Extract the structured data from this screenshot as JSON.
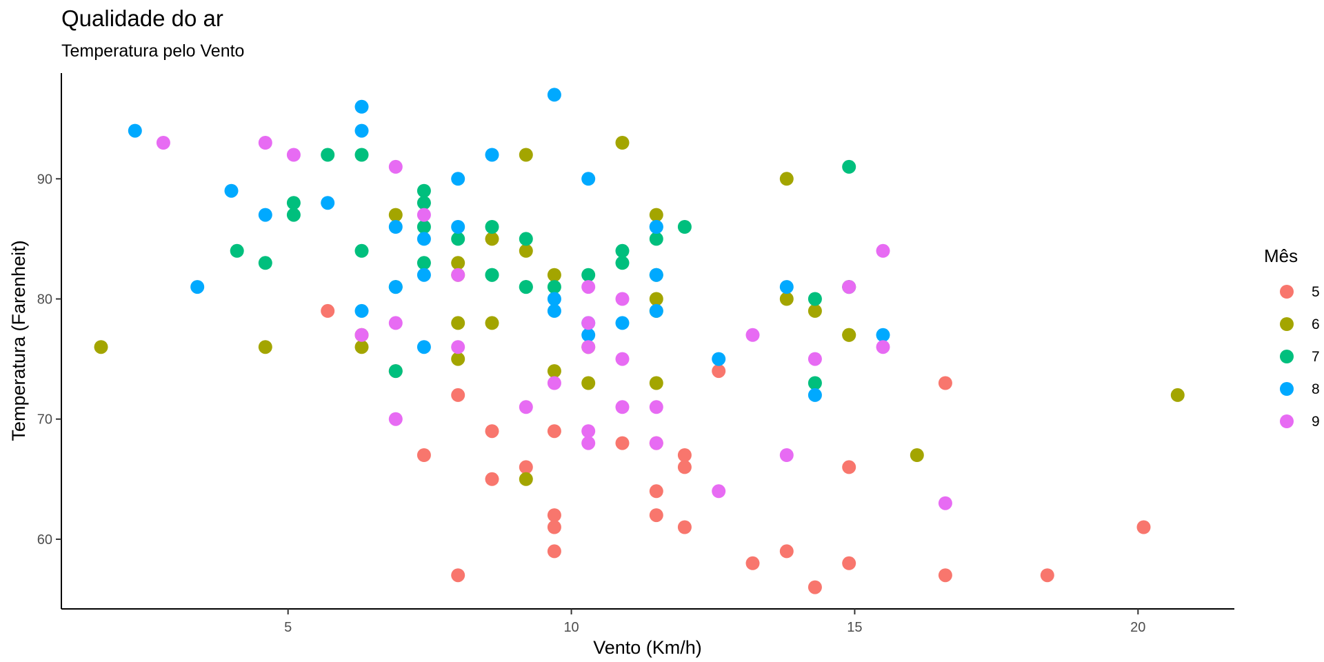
{
  "chart_data": {
    "type": "scatter",
    "title": "Qualidade do ar",
    "subtitle": "Temperatura pelo Vento",
    "xlabel": "Vento (Km/h)",
    "ylabel": "Temperatura (Farenheit)",
    "xlim": [
      1,
      21.7
    ],
    "ylim": [
      54.2,
      98.8
    ],
    "xticks": [
      5,
      10,
      15,
      20
    ],
    "yticks": [
      60,
      70,
      80,
      90
    ],
    "grid": false,
    "legend": {
      "title": "Mês",
      "placement": "right"
    },
    "series": [
      {
        "name": "5",
        "color": "#F8766D",
        "points": [
          [
            7.4,
            67
          ],
          [
            8,
            72
          ],
          [
            12.6,
            74
          ],
          [
            11.5,
            62
          ],
          [
            14.3,
            56
          ],
          [
            14.9,
            66
          ],
          [
            8.6,
            65
          ],
          [
            13.8,
            59
          ],
          [
            20.1,
            61
          ],
          [
            8.6,
            69
          ],
          [
            6.9,
            74
          ],
          [
            9.7,
            69
          ],
          [
            9.2,
            66
          ],
          [
            10.9,
            68
          ],
          [
            13.2,
            58
          ],
          [
            11.5,
            64
          ],
          [
            12,
            66
          ],
          [
            18.4,
            57
          ],
          [
            11.5,
            68
          ],
          [
            9.7,
            62
          ],
          [
            9.7,
            59
          ],
          [
            16.6,
            73
          ],
          [
            9.7,
            61
          ],
          [
            12,
            61
          ],
          [
            16.6,
            57
          ],
          [
            14.9,
            58
          ],
          [
            8,
            57
          ],
          [
            12,
            67
          ],
          [
            14.9,
            81
          ],
          [
            5.7,
            79
          ]
        ]
      },
      {
        "name": "6",
        "color": "#A3A500",
        "points": [
          [
            8.6,
            78
          ],
          [
            9.7,
            74
          ],
          [
            16.1,
            67
          ],
          [
            9.2,
            84
          ],
          [
            8.6,
            85
          ],
          [
            14.3,
            79
          ],
          [
            9.7,
            82
          ],
          [
            6.9,
            87
          ],
          [
            13.8,
            90
          ],
          [
            11.5,
            87
          ],
          [
            10.9,
            93
          ],
          [
            9.2,
            92
          ],
          [
            8,
            82
          ],
          [
            13.8,
            80
          ],
          [
            11.5,
            79
          ],
          [
            14.9,
            77
          ],
          [
            20.7,
            72
          ],
          [
            9.2,
            65
          ],
          [
            11.5,
            73
          ],
          [
            10.3,
            76
          ],
          [
            6.3,
            77
          ],
          [
            1.7,
            76
          ],
          [
            4.6,
            76
          ],
          [
            6.3,
            76
          ],
          [
            8,
            75
          ],
          [
            8,
            78
          ],
          [
            10.3,
            73
          ],
          [
            11.5,
            80
          ],
          [
            14.9,
            77
          ],
          [
            8,
            83
          ]
        ]
      },
      {
        "name": "7",
        "color": "#00BF7D",
        "points": [
          [
            4.1,
            84
          ],
          [
            9.2,
            85
          ],
          [
            9.2,
            81
          ],
          [
            10.9,
            84
          ],
          [
            4.6,
            83
          ],
          [
            10.9,
            83
          ],
          [
            5.1,
            88
          ],
          [
            6.3,
            92
          ],
          [
            5.7,
            92
          ],
          [
            7.4,
            89
          ],
          [
            8.6,
            82
          ],
          [
            14.3,
            73
          ],
          [
            14.9,
            81
          ],
          [
            14.9,
            91
          ],
          [
            14.3,
            80
          ],
          [
            6.9,
            81
          ],
          [
            10.3,
            82
          ],
          [
            6.3,
            84
          ],
          [
            5.1,
            87
          ],
          [
            11.5,
            85
          ],
          [
            6.9,
            74
          ],
          [
            9.7,
            81
          ],
          [
            11.5,
            82
          ],
          [
            8.6,
            86
          ],
          [
            8,
            85
          ],
          [
            8.6,
            82
          ],
          [
            12,
            86
          ],
          [
            7.4,
            88
          ],
          [
            7.4,
            86
          ],
          [
            7.4,
            83
          ],
          [
            9.2,
            81
          ]
        ]
      },
      {
        "name": "8",
        "color": "#00A9FF",
        "points": [
          [
            6.9,
            81
          ],
          [
            13.8,
            81
          ],
          [
            7.4,
            82
          ],
          [
            6.9,
            86
          ],
          [
            7.4,
            85
          ],
          [
            4.6,
            87
          ],
          [
            4,
            89
          ],
          [
            10.3,
            90
          ],
          [
            8,
            90
          ],
          [
            8.6,
            92
          ],
          [
            11.5,
            86
          ],
          [
            11.5,
            86
          ],
          [
            11.5,
            82
          ],
          [
            9.7,
            80
          ],
          [
            11.5,
            79
          ],
          [
            10.3,
            77
          ],
          [
            6.3,
            79
          ],
          [
            7.4,
            76
          ],
          [
            10.9,
            78
          ],
          [
            10.3,
            78
          ],
          [
            15.5,
            77
          ],
          [
            14.3,
            72
          ],
          [
            12.6,
            75
          ],
          [
            9.7,
            79
          ],
          [
            3.4,
            81
          ],
          [
            8,
            86
          ],
          [
            5.7,
            88
          ],
          [
            9.7,
            97
          ],
          [
            2.3,
            94
          ],
          [
            6.3,
            96
          ],
          [
            6.3,
            94
          ]
        ]
      },
      {
        "name": "9",
        "color": "#E76BF3",
        "points": [
          [
            6.9,
            91
          ],
          [
            5.1,
            92
          ],
          [
            2.8,
            93
          ],
          [
            4.6,
            93
          ],
          [
            7.4,
            87
          ],
          [
            15.5,
            84
          ],
          [
            10.9,
            80
          ],
          [
            10.3,
            78
          ],
          [
            10.9,
            75
          ],
          [
            9.7,
            73
          ],
          [
            14.9,
            81
          ],
          [
            15.5,
            76
          ],
          [
            6.3,
            77
          ],
          [
            10.9,
            71
          ],
          [
            11.5,
            71
          ],
          [
            6.9,
            78
          ],
          [
            13.8,
            67
          ],
          [
            10.3,
            76
          ],
          [
            10.3,
            68
          ],
          [
            8,
            82
          ],
          [
            12.6,
            64
          ],
          [
            9.2,
            71
          ],
          [
            10.3,
            81
          ],
          [
            10.3,
            69
          ],
          [
            16.6,
            63
          ],
          [
            6.9,
            70
          ],
          [
            13.2,
            77
          ],
          [
            14.3,
            75
          ],
          [
            8,
            76
          ],
          [
            11.5,
            68
          ]
        ]
      }
    ]
  }
}
